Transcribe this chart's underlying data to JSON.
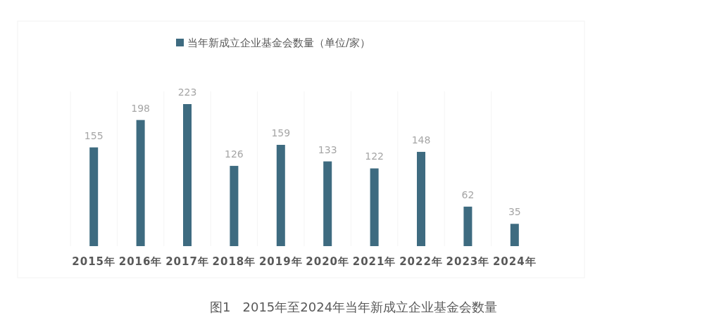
{
  "chart_data": {
    "type": "bar",
    "categories": [
      "2015年",
      "2016年",
      "2017年",
      "2018年",
      "2019年",
      "2020年",
      "2021年",
      "2022年",
      "2023年",
      "2024年"
    ],
    "series": [
      {
        "name": "当年新成立企业基金会数量（单位/家）",
        "color": "#3e6b80",
        "values": [
          155,
          198,
          223,
          126,
          159,
          133,
          122,
          148,
          62,
          35
        ]
      }
    ],
    "data_labels": true,
    "legend": "top",
    "annotations": [
      "图1   2015年至2024年当年新成立企业基金会数量"
    ]
  }
}
